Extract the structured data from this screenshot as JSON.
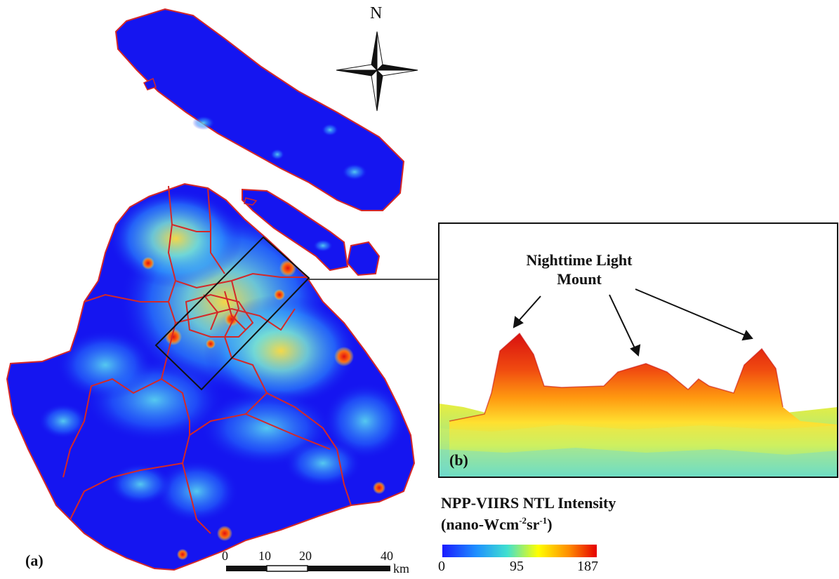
{
  "north_label": "N",
  "panel_a_label": "(a)",
  "panel_b_label": "(b)",
  "annotation": {
    "line1": "Nighttime Light",
    "line2": "Mount"
  },
  "legend": {
    "title": "NPP-VIIRS NTL Intensity",
    "unit_prefix": "(nano-Wcm",
    "unit_exp1": "-2",
    "unit_mid": "sr",
    "unit_exp2": "-1",
    "unit_suffix": ")",
    "min": "0",
    "mid": "95",
    "max": "187",
    "colors": [
      "#1a1aff",
      "#1e90ff",
      "#40e0d0",
      "#ffff00",
      "#ff8c00",
      "#e60000"
    ]
  },
  "scalebar": {
    "ticks": [
      "0",
      "10",
      "20",
      "40"
    ],
    "unit": "km"
  },
  "colors": {
    "land": "#1515f0",
    "boundary": "#d42828",
    "hotspot": "#e02020"
  }
}
